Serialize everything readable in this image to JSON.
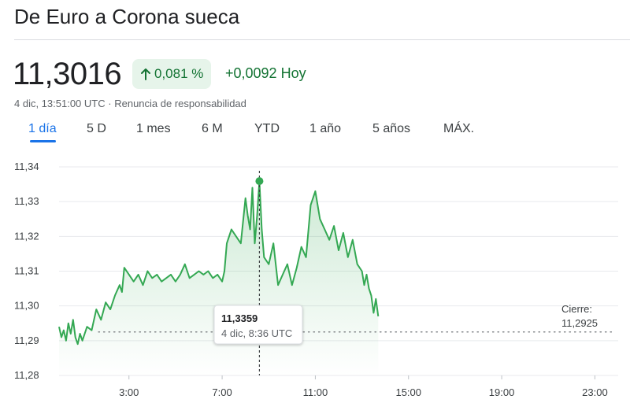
{
  "header": {
    "title": "De Euro a Corona sueca"
  },
  "quote": {
    "price": "11,3016",
    "change_percent": "0,081 %",
    "change_abs": "+0,0092 Hoy",
    "timestamp": "4 dic, 13:51:00 UTC",
    "separator": "·",
    "disclaimer": "Renuncia de responsabilidad"
  },
  "colors": {
    "up": "#137333",
    "line": "#34a853",
    "accent": "#1a73e8"
  },
  "range_tabs": [
    {
      "label": "1 día",
      "active": true
    },
    {
      "label": "5 D",
      "active": false
    },
    {
      "label": "1 mes",
      "active": false
    },
    {
      "label": "6 M",
      "active": false
    },
    {
      "label": "YTD",
      "active": false
    },
    {
      "label": "1 año",
      "active": false
    },
    {
      "label": "5 años",
      "active": false
    },
    {
      "label": "MÁX.",
      "active": false
    }
  ],
  "tooltip": {
    "value": "11,3359",
    "time": "4 dic, 8:36 UTC"
  },
  "close_label": {
    "title": "Cierre:",
    "value": "11,2925"
  },
  "chart_data": {
    "type": "area",
    "title": "",
    "xlabel": "",
    "ylabel": "",
    "x_unit": "hours UTC",
    "x_ticks": [
      {
        "value": 3,
        "label": "3:00"
      },
      {
        "value": 7,
        "label": "7:00"
      },
      {
        "value": 11,
        "label": "11:00"
      },
      {
        "value": 15,
        "label": "15:00"
      },
      {
        "value": 19,
        "label": "19:00"
      },
      {
        "value": 23,
        "label": "23:00"
      }
    ],
    "y_ticks": [
      {
        "value": 11.28,
        "label": "11,28"
      },
      {
        "value": 11.29,
        "label": "11,29"
      },
      {
        "value": 11.3,
        "label": "11,30"
      },
      {
        "value": 11.31,
        "label": "11,31"
      },
      {
        "value": 11.32,
        "label": "11,32"
      },
      {
        "value": 11.33,
        "label": "11,33"
      },
      {
        "value": 11.34,
        "label": "11,34"
      }
    ],
    "xlim": [
      0,
      24
    ],
    "ylim": [
      11.28,
      11.34
    ],
    "previous_close": 11.2925,
    "highlight": {
      "x": 8.6,
      "y": 11.3359
    },
    "series": [
      {
        "x": [
          0,
          0.1,
          0.2,
          0.3,
          0.4,
          0.5,
          0.6,
          0.7,
          0.8,
          0.9,
          1.0,
          1.2,
          1.4,
          1.6,
          1.8,
          2.0,
          2.2,
          2.4,
          2.6,
          2.7,
          2.8,
          3.0,
          3.2,
          3.4,
          3.6,
          3.8,
          4.0,
          4.2,
          4.4,
          4.6,
          4.8,
          5.0,
          5.2,
          5.4,
          5.6,
          5.8,
          6.0,
          6.2,
          6.4,
          6.6,
          6.8,
          7.0,
          7.1,
          7.2,
          7.4,
          7.6,
          7.8,
          8.0,
          8.1,
          8.2,
          8.3,
          8.4,
          8.5,
          8.6,
          8.7,
          8.8,
          9.0,
          9.2,
          9.4,
          9.6,
          9.8,
          10.0,
          10.2,
          10.4,
          10.6,
          10.8,
          11.0,
          11.2,
          11.4,
          11.6,
          11.8,
          12.0,
          12.2,
          12.4,
          12.6,
          12.8,
          13.0,
          13.1,
          13.2,
          13.3,
          13.4,
          13.5,
          13.6,
          13.7
        ],
        "y": [
          11.294,
          11.291,
          11.293,
          11.29,
          11.295,
          11.292,
          11.296,
          11.291,
          11.289,
          11.292,
          11.29,
          11.294,
          11.293,
          11.299,
          11.296,
          11.301,
          11.299,
          11.303,
          11.306,
          11.304,
          11.311,
          11.309,
          11.307,
          11.309,
          11.306,
          11.31,
          11.308,
          11.309,
          11.307,
          11.308,
          11.309,
          11.307,
          11.309,
          11.312,
          11.308,
          11.309,
          11.31,
          11.309,
          11.31,
          11.308,
          11.309,
          11.307,
          11.31,
          11.318,
          11.322,
          11.32,
          11.318,
          11.331,
          11.326,
          11.322,
          11.334,
          11.318,
          11.326,
          11.3359,
          11.322,
          11.314,
          11.312,
          11.318,
          11.306,
          11.309,
          11.312,
          11.306,
          11.311,
          11.317,
          11.314,
          11.329,
          11.333,
          11.325,
          11.322,
          11.319,
          11.323,
          11.316,
          11.321,
          11.314,
          11.319,
          11.312,
          11.31,
          11.306,
          11.309,
          11.305,
          11.303,
          11.298,
          11.302,
          11.297
        ]
      }
    ]
  }
}
